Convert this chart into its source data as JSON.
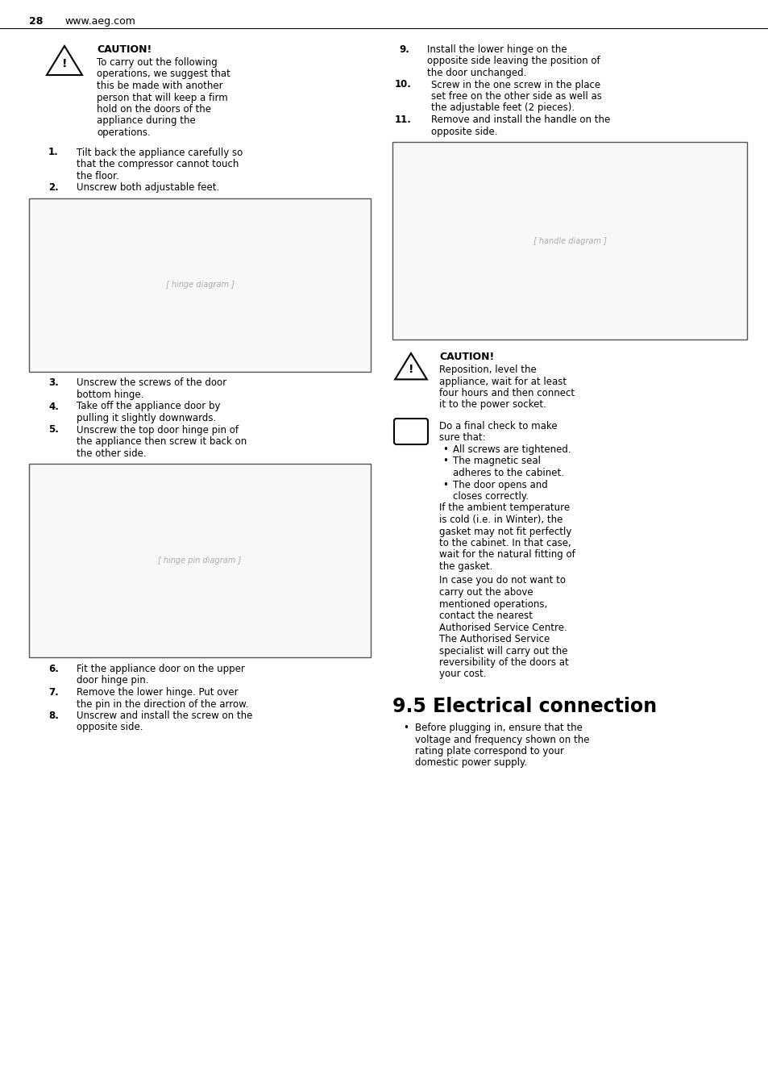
{
  "bg_color": "#ffffff",
  "text_color": "#000000",
  "page_number": "28",
  "website": "www.aeg.com",
  "caution_title": "CAUTION!",
  "caution_text_left": "To carry out the following\noperations, we suggest that\nthis be made with another\nperson that will keep a firm\nhold on the doors of the\nappliance during the\noperations.",
  "step1": "Tilt back the appliance carefully so\nthat the compressor cannot touch\nthe floor.",
  "step2": "Unscrew both adjustable feet.",
  "step3": "Unscrew the screws of the door\nbottom hinge.",
  "step4": "Take off the appliance door by\npulling it slightly downwards.",
  "step5": "Unscrew the top door hinge pin of\nthe appliance then screw it back on\nthe other side.",
  "step6": "Fit the appliance door on the upper\ndoor hinge pin.",
  "step7": "Remove the lower hinge. Put over\nthe pin in the direction of the arrow.",
  "step8": "Unscrew and install the screw on the\nopposite side.",
  "step9": "Install the lower hinge on the\nopposite side leaving the position of\nthe door unchanged.",
  "step10": "Screw in the one screw in the place\nset free on the other side as well as\nthe adjustable feet (2 pieces).",
  "step11": "Remove and install the handle on the\nopposite side.",
  "caution_title2": "CAUTION!",
  "caution_text2": "Reposition, level the\nappliance, wait for at least\nfour hours and then connect\nit to the power socket.",
  "info_line1": "Do a final check to make",
  "info_line2": "sure that:",
  "info_bullets": [
    "All screws are tightened.",
    "The magnetic seal\nadheres to the cabinet.",
    "The door opens and\ncloses correctly."
  ],
  "info_para1": "If the ambient temperature\nis cold (i.e. in Winter), the\ngasket may not fit perfectly\nto the cabinet. In that case,\nwait for the natural fitting of\nthe gasket.",
  "info_para2": "In case you do not want to\ncarry out the above\nmentioned operations,\ncontact the nearest\nAuthorised Service Centre.\nThe Authorised Service\nspecialist will carry out the\nreversibility of the doors at\nyour cost.",
  "section_title": "9.5 Electrical connection",
  "bullet_text": "Before plugging in, ensure that the\nvoltage and frequency shown on the\nrating plate correspond to your\ndomestic power supply."
}
